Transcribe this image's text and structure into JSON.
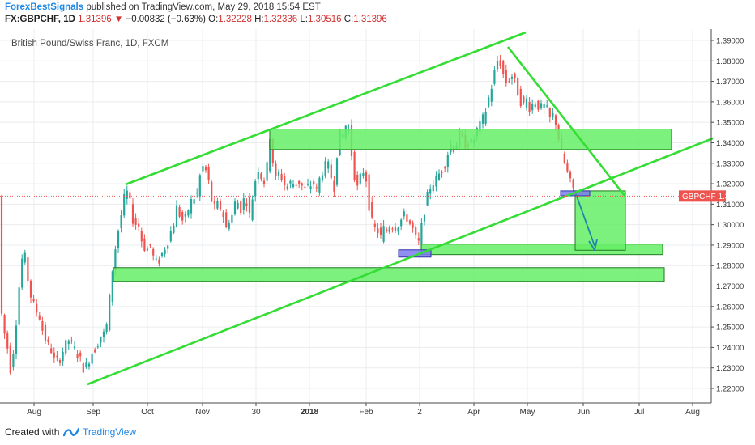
{
  "header": {
    "publisher": "ForexBestSignals",
    "published_text": "published on TradingView.com, May 29, 2018 15:54 EST",
    "symbol": "FX:GBPCHF, 1D",
    "last": "1.31396",
    "change": "−0.00832 (−0.63%)",
    "open_label": "O:",
    "open": "1.32228",
    "high_label": "H:",
    "high": "1.32336",
    "low_label": "L:",
    "low": "1.30516",
    "close_label": "C:",
    "close": "1.31396"
  },
  "footer": {
    "created_with": "Created with",
    "brand": "TradingView"
  },
  "colors": {
    "up": "#26a69a",
    "down": "#ef5350",
    "trendline": "#33dd33",
    "zone_fill": "#66ee66",
    "zone_stroke": "#1f7a1f",
    "marker": "#7b7bee",
    "arrow": "#1e88a8",
    "price_label": "#ef5350",
    "grid": "#e9ecef",
    "axis": "#4a4a4a"
  },
  "chart_data": {
    "type": "candlestick",
    "title": "British Pound/Swiss Franc, 1D, FXCM",
    "y_axis": {
      "ticks": [
        "1.22000",
        "1.23000",
        "1.24000",
        "1.25000",
        "1.26000",
        "1.27000",
        "1.28000",
        "1.29000",
        "1.30000",
        "1.31000",
        "1.32000",
        "1.33000",
        "1.34000",
        "1.35000",
        "1.36000",
        "1.37000",
        "1.38000",
        "1.39000"
      ],
      "range": [
        1.214,
        1.394
      ]
    },
    "x_axis": {
      "ticks": [
        "Aug",
        "Sep",
        "Oct",
        "Nov",
        "30",
        "2018",
        "Feb",
        "2",
        "Apr",
        "May",
        "Jun",
        "Jul",
        "Aug"
      ]
    },
    "current_price": {
      "label": "GBPCHF",
      "value": "1.31396",
      "numeric": 1.31396
    },
    "series_shape": [
      [
        0,
        1.268
      ],
      [
        3,
        1.255
      ],
      [
        7,
        1.245
      ],
      [
        11,
        1.238
      ],
      [
        14,
        1.228
      ],
      [
        19,
        1.245
      ],
      [
        24,
        1.268
      ],
      [
        27,
        1.283
      ],
      [
        33,
        1.284
      ],
      [
        36,
        1.269
      ],
      [
        41,
        1.262
      ],
      [
        45,
        1.258
      ],
      [
        49,
        1.256
      ],
      [
        54,
        1.247
      ],
      [
        60,
        1.241
      ],
      [
        65,
        1.238
      ],
      [
        68,
        1.233
      ],
      [
        74,
        1.234
      ],
      [
        80,
        1.24
      ],
      [
        86,
        1.244
      ],
      [
        91,
        1.24
      ],
      [
        99,
        1.235
      ],
      [
        103,
        1.23
      ],
      [
        108,
        1.231
      ],
      [
        113,
        1.237
      ],
      [
        119,
        1.24
      ],
      [
        124,
        1.245
      ],
      [
        130,
        1.247
      ],
      [
        134,
        1.253
      ],
      [
        137,
        1.27
      ],
      [
        141,
        1.283
      ],
      [
        146,
        1.296
      ],
      [
        151,
        1.306
      ],
      [
        155,
        1.315
      ],
      [
        159,
        1.316
      ],
      [
        162,
        1.308
      ],
      [
        166,
        1.3
      ],
      [
        171,
        1.301
      ],
      [
        175,
        1.293
      ],
      [
        179,
        1.289
      ],
      [
        183,
        1.288
      ],
      [
        187,
        1.29
      ],
      [
        191,
        1.282
      ],
      [
        195,
        1.281
      ],
      [
        199,
        1.284
      ],
      [
        203,
        1.288
      ],
      [
        207,
        1.291
      ],
      [
        212,
        1.297
      ],
      [
        216,
        1.302
      ],
      [
        219,
        1.309
      ],
      [
        224,
        1.303
      ],
      [
        228,
        1.301
      ],
      [
        232,
        1.306
      ],
      [
        236,
        1.311
      ],
      [
        240,
        1.313
      ],
      [
        244,
        1.315
      ],
      [
        248,
        1.325
      ],
      [
        252,
        1.329
      ],
      [
        256,
        1.325
      ],
      [
        260,
        1.317
      ],
      [
        264,
        1.307
      ],
      [
        268,
        1.31
      ],
      [
        272,
        1.309
      ],
      [
        276,
        1.305
      ],
      [
        280,
        1.298
      ],
      [
        284,
        1.303
      ],
      [
        288,
        1.305
      ],
      [
        292,
        1.313
      ],
      [
        296,
        1.309
      ],
      [
        299,
        1.307
      ],
      [
        302,
        1.313
      ],
      [
        305,
        1.312
      ],
      [
        309,
        1.304
      ],
      [
        314,
        1.318
      ],
      [
        319,
        1.328
      ],
      [
        322,
        1.325
      ],
      [
        326,
        1.32
      ],
      [
        330,
        1.327
      ],
      [
        334,
        1.344
      ],
      [
        337,
        1.332
      ],
      [
        341,
        1.322
      ],
      [
        346,
        1.326
      ],
      [
        350,
        1.321
      ],
      [
        354,
        1.318
      ],
      [
        358,
        1.32
      ],
      [
        361,
        1.321
      ],
      [
        364,
        1.319
      ],
      [
        368,
        1.321
      ],
      [
        372,
        1.32
      ],
      [
        376,
        1.317
      ],
      [
        380,
        1.318
      ],
      [
        383,
        1.319
      ],
      [
        388,
        1.32
      ],
      [
        392,
        1.316
      ],
      [
        396,
        1.324
      ],
      [
        401,
        1.328
      ],
      [
        405,
        1.33
      ],
      [
        409,
        1.324
      ],
      [
        413,
        1.318
      ],
      [
        416,
        1.333
      ],
      [
        420,
        1.344
      ],
      [
        424,
        1.344
      ],
      [
        428,
        1.349
      ],
      [
        432,
        1.346
      ],
      [
        436,
        1.329
      ],
      [
        440,
        1.321
      ],
      [
        443,
        1.316
      ],
      [
        447,
        1.327
      ],
      [
        452,
        1.325
      ],
      [
        456,
        1.31
      ],
      [
        460,
        1.301
      ],
      [
        463,
        1.298
      ],
      [
        467,
        1.297
      ],
      [
        470,
        1.293
      ],
      [
        474,
        1.298
      ],
      [
        478,
        1.297
      ],
      [
        483,
        1.301
      ],
      [
        487,
        1.298
      ],
      [
        492,
        1.3
      ],
      [
        497,
        1.303
      ],
      [
        501,
        1.305
      ],
      [
        506,
        1.301
      ],
      [
        510,
        1.298
      ],
      [
        514,
        1.293
      ],
      [
        519,
        1.29
      ],
      [
        522,
        1.303
      ],
      [
        526,
        1.309
      ],
      [
        530,
        1.317
      ],
      [
        534,
        1.32
      ],
      [
        539,
        1.322
      ],
      [
        543,
        1.325
      ],
      [
        548,
        1.328
      ],
      [
        552,
        1.332
      ],
      [
        556,
        1.34
      ],
      [
        560,
        1.337
      ],
      [
        564,
        1.339
      ],
      [
        568,
        1.344
      ],
      [
        572,
        1.341
      ],
      [
        576,
        1.339
      ],
      [
        580,
        1.341
      ],
      [
        584,
        1.339
      ],
      [
        589,
        1.346
      ],
      [
        594,
        1.349
      ],
      [
        598,
        1.353
      ],
      [
        602,
        1.358
      ],
      [
        605,
        1.364
      ],
      [
        608,
        1.368
      ],
      [
        612,
        1.376
      ],
      [
        616,
        1.382
      ],
      [
        619,
        1.378
      ],
      [
        623,
        1.372
      ],
      [
        627,
        1.368
      ],
      [
        631,
        1.374
      ],
      [
        635,
        1.371
      ],
      [
        639,
        1.366
      ],
      [
        643,
        1.361
      ],
      [
        646,
        1.357
      ],
      [
        650,
        1.362
      ],
      [
        654,
        1.357
      ],
      [
        658,
        1.359
      ],
      [
        662,
        1.36
      ],
      [
        665,
        1.358
      ],
      [
        669,
        1.357
      ],
      [
        673,
        1.358
      ],
      [
        677,
        1.355
      ],
      [
        680,
        1.351
      ],
      [
        684,
        1.354
      ],
      [
        688,
        1.348
      ],
      [
        692,
        1.338
      ],
      [
        696,
        1.332
      ],
      [
        700,
        1.327
      ],
      [
        704,
        1.321
      ],
      [
        708,
        1.318
      ],
      [
        711,
        1.314
      ]
    ]
  }
}
